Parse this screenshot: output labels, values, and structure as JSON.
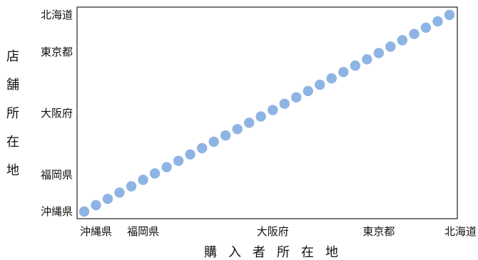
{
  "chart_data": {
    "type": "scatter",
    "xlabel": "購入者所在地",
    "ylabel": "店舗所在地",
    "categories": [
      "沖縄県",
      "福岡県",
      "大阪府",
      "東京都",
      "北海道"
    ],
    "x_ticks": [
      {
        "label": "沖縄県",
        "value": 0
      },
      {
        "label": "福岡県",
        "value": 5
      },
      {
        "label": "大阪府",
        "value": 16
      },
      {
        "label": "東京都",
        "value": 25
      },
      {
        "label": "北海道",
        "value": 31
      }
    ],
    "y_ticks": [
      {
        "label": "沖縄県",
        "value": 0
      },
      {
        "label": "福岡県",
        "value": 3
      },
      {
        "label": "大阪府",
        "value": 8
      },
      {
        "label": "東京都",
        "value": 13
      },
      {
        "label": "北海道",
        "value": 16
      }
    ],
    "xlim": [
      0,
      31
    ],
    "ylim": [
      0,
      16
    ],
    "grid": false,
    "point_color": "#8eb4e3",
    "points": [
      {
        "x": 0,
        "y": 0.0
      },
      {
        "x": 1,
        "y": 0.52
      },
      {
        "x": 2,
        "y": 1.03
      },
      {
        "x": 3,
        "y": 1.55
      },
      {
        "x": 4,
        "y": 2.06
      },
      {
        "x": 5,
        "y": 2.58
      },
      {
        "x": 6,
        "y": 3.1
      },
      {
        "x": 7,
        "y": 3.61
      },
      {
        "x": 8,
        "y": 4.13
      },
      {
        "x": 9,
        "y": 4.65
      },
      {
        "x": 10,
        "y": 5.16
      },
      {
        "x": 11,
        "y": 5.68
      },
      {
        "x": 12,
        "y": 6.19
      },
      {
        "x": 13,
        "y": 6.71
      },
      {
        "x": 14,
        "y": 7.23
      },
      {
        "x": 15,
        "y": 7.74
      },
      {
        "x": 16,
        "y": 8.26
      },
      {
        "x": 17,
        "y": 8.77
      },
      {
        "x": 18,
        "y": 9.29
      },
      {
        "x": 19,
        "y": 9.81
      },
      {
        "x": 20,
        "y": 10.32
      },
      {
        "x": 21,
        "y": 10.84
      },
      {
        "x": 22,
        "y": 11.35
      },
      {
        "x": 23,
        "y": 11.87
      },
      {
        "x": 24,
        "y": 12.39
      },
      {
        "x": 25,
        "y": 12.9
      },
      {
        "x": 26,
        "y": 13.42
      },
      {
        "x": 27,
        "y": 13.94
      },
      {
        "x": 28,
        "y": 14.45
      },
      {
        "x": 29,
        "y": 14.97
      },
      {
        "x": 30,
        "y": 15.48
      },
      {
        "x": 31,
        "y": 16.0
      }
    ]
  }
}
